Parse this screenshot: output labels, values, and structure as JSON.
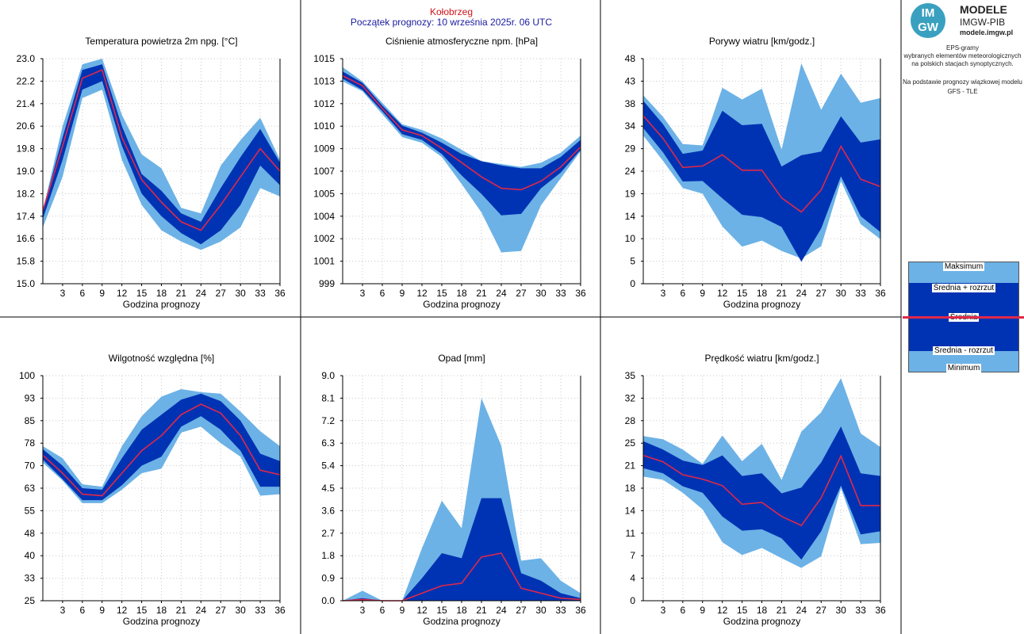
{
  "header": {
    "city": "Kołobrzeg",
    "start": "Początek prognozy: 10 września 2025r. 06 UTC"
  },
  "logo": {
    "mark": "IM GW",
    "title": "MODELE",
    "subtitle": "IMGW-PIB",
    "url": "modele.imgw.pl"
  },
  "info": {
    "line1": "EPS-gramy",
    "line2": "wybranych elementów meteorologicznych",
    "line3": "na polskich stacjach synoptycznych.",
    "line4": "Na podstawie prognozy wiązkowej modelu",
    "line5": "GFS - TLE"
  },
  "legend": {
    "max": "Maksimum",
    "upper": "Średnia + rozrzut",
    "mean": "Średnia",
    "lower": "Średnia - rozrzut",
    "min": "Minimum"
  },
  "colors": {
    "outer_band": "#6cb2e6",
    "inner_band": "#0033b3",
    "mean_line": "#e0284a",
    "grid": "#c8c8c8",
    "title_city": "#d0141b",
    "title_start": "#1a1aa0"
  },
  "chart_data": [
    {
      "type": "area",
      "title": "Temperatura powietrza 2m npg. [°C]",
      "xlabel": "Godzina prognozy",
      "x": [
        0,
        3,
        6,
        9,
        12,
        15,
        18,
        21,
        24,
        27,
        30,
        33,
        36
      ],
      "xticks": [
        "3",
        "6",
        "9",
        "12",
        "15",
        "18",
        "21",
        "24",
        "27",
        "30",
        "33",
        "36"
      ],
      "yticks": [
        "15.0",
        "15.8",
        "16.6",
        "17.4",
        "18.2",
        "19.0",
        "19.8",
        "20.6",
        "21.4",
        "22.2",
        "23.0"
      ],
      "ylim": [
        15.0,
        23.0
      ],
      "series": [
        {
          "name": "Maksimum",
          "values": [
            17.6,
            20.6,
            22.8,
            23.0,
            21.0,
            19.6,
            19.1,
            17.7,
            17.5,
            19.2,
            20.1,
            20.9,
            19.4
          ]
        },
        {
          "name": "Średnia + rozrzut",
          "values": [
            17.6,
            20.2,
            22.6,
            22.8,
            20.6,
            18.9,
            18.3,
            17.5,
            17.2,
            18.4,
            19.5,
            20.5,
            19.3
          ]
        },
        {
          "name": "Średnia",
          "values": [
            17.6,
            19.9,
            22.3,
            22.6,
            20.2,
            18.7,
            17.9,
            17.2,
            16.9,
            17.8,
            18.8,
            19.8,
            19.0
          ]
        },
        {
          "name": "Średnia - rozrzut",
          "values": [
            17.3,
            19.4,
            21.9,
            22.2,
            19.9,
            18.2,
            17.4,
            16.8,
            16.4,
            16.9,
            17.8,
            19.2,
            18.5
          ]
        },
        {
          "name": "Minimum",
          "values": [
            17.0,
            18.8,
            21.6,
            21.9,
            19.4,
            17.8,
            16.9,
            16.5,
            16.2,
            16.5,
            17.0,
            18.4,
            18.1
          ]
        }
      ]
    },
    {
      "type": "area",
      "title": "Ciśnienie atmosferyczne npm. [hPa]",
      "xlabel": "Godzina prognozy",
      "x": [
        0,
        3,
        6,
        9,
        12,
        15,
        18,
        21,
        24,
        27,
        30,
        33,
        36
      ],
      "xticks": [
        "3",
        "6",
        "9",
        "12",
        "15",
        "18",
        "21",
        "24",
        "27",
        "30",
        "33",
        "36"
      ],
      "yticks": [
        "999",
        "1001",
        "1002",
        "1004",
        "1005",
        "1007",
        "1009",
        "1010",
        "1012",
        "1013",
        "1015"
      ],
      "ylim": [
        999.4,
        1015.2
      ],
      "series": [
        {
          "name": "Maksimum",
          "values": [
            1014.6,
            1013.6,
            1012.1,
            1010.6,
            1010.2,
            1009.6,
            1008.8,
            1008.0,
            1007.8,
            1007.6,
            1007.9,
            1008.6,
            1009.8
          ]
        },
        {
          "name": "Średnia + rozrzut",
          "values": [
            1014.3,
            1013.5,
            1011.9,
            1010.5,
            1010.0,
            1009.3,
            1008.5,
            1008.0,
            1007.7,
            1007.5,
            1007.5,
            1008.3,
            1009.5
          ]
        },
        {
          "name": "Średnia",
          "values": [
            1014.0,
            1013.3,
            1011.7,
            1010.2,
            1009.8,
            1008.9,
            1007.9,
            1006.9,
            1006.1,
            1006.0,
            1006.6,
            1007.6,
            1009.0
          ]
        },
        {
          "name": "Średnia - rozrzut",
          "values": [
            1013.8,
            1013.0,
            1011.5,
            1009.9,
            1009.5,
            1008.5,
            1007.0,
            1005.7,
            1004.2,
            1004.3,
            1006.1,
            1007.2,
            1008.8
          ]
        },
        {
          "name": "Minimum",
          "values": [
            1013.6,
            1012.9,
            1011.3,
            1009.7,
            1009.3,
            1008.3,
            1006.4,
            1004.4,
            1001.6,
            1001.7,
            1004.9,
            1006.8,
            1008.7
          ]
        }
      ]
    },
    {
      "type": "area",
      "title": "Porywy wiatru [km/godz.]",
      "xlabel": "Godzina prognozy",
      "x": [
        0,
        3,
        6,
        9,
        12,
        15,
        18,
        21,
        24,
        27,
        30,
        33,
        36
      ],
      "xticks": [
        "3",
        "6",
        "9",
        "12",
        "15",
        "18",
        "21",
        "24",
        "27",
        "30",
        "33",
        "36"
      ],
      "yticks": [
        "0",
        "5",
        "10",
        "14",
        "19",
        "24",
        "29",
        "34",
        "38",
        "43",
        "48"
      ],
      "ylim": [
        0,
        48
      ],
      "series": [
        {
          "name": "Maksimum",
          "values": [
            40.2,
            35.6,
            29.8,
            29.5,
            41.8,
            39.3,
            41.6,
            28.6,
            47.0,
            37.1,
            44.8,
            38.6,
            39.6
          ]
        },
        {
          "name": "Średnia + rozrzut",
          "values": [
            39.0,
            34.0,
            27.7,
            28.4,
            36.9,
            33.8,
            34.1,
            25.0,
            27.4,
            28.2,
            35.7,
            30.1,
            30.8
          ]
        },
        {
          "name": "Średnia",
          "values": [
            35.8,
            31.0,
            24.8,
            25.1,
            27.5,
            24.2,
            24.2,
            18.3,
            15.3,
            20.0,
            29.3,
            22.3,
            20.7
          ]
        },
        {
          "name": "Średnia - rozrzut",
          "values": [
            33.2,
            28.0,
            21.8,
            21.9,
            18.2,
            14.7,
            14.2,
            12.1,
            4.7,
            11.8,
            22.9,
            14.4,
            11.0
          ]
        },
        {
          "name": "Minimum",
          "values": [
            31.6,
            26.2,
            20.4,
            19.2,
            12.2,
            7.9,
            9.2,
            7.0,
            5.4,
            8.0,
            21.9,
            12.7,
            9.5
          ]
        }
      ]
    },
    {
      "type": "area",
      "title": "Wilgotność względna [%]",
      "xlabel": "Godzina prognozy",
      "x": [
        0,
        3,
        6,
        9,
        12,
        15,
        18,
        21,
        24,
        27,
        30,
        33,
        36
      ],
      "xticks": [
        "3",
        "6",
        "9",
        "12",
        "15",
        "18",
        "21",
        "24",
        "27",
        "30",
        "33",
        "36"
      ],
      "yticks": [
        "25",
        "33",
        "40",
        "48",
        "55",
        "63",
        "70",
        "78",
        "85",
        "93",
        "100"
      ],
      "ylim": [
        25,
        100
      ],
      "series": [
        {
          "name": "Maksimum",
          "values": [
            76.5,
            72.5,
            63.8,
            63.0,
            76.5,
            86.5,
            93.0,
            95.5,
            94.5,
            94.0,
            88.0,
            81.5,
            76.5
          ]
        },
        {
          "name": "Średnia + rozrzut",
          "values": [
            75.5,
            70.0,
            62.5,
            62.0,
            72.5,
            82.0,
            87.0,
            92.0,
            94.0,
            91.5,
            85.0,
            74.0,
            71.5
          ]
        },
        {
          "name": "Średnia",
          "values": [
            73.5,
            67.5,
            60.5,
            60.0,
            67.5,
            75.0,
            80.0,
            87.0,
            90.5,
            87.5,
            80.0,
            68.5,
            67.0
          ]
        },
        {
          "name": "Średnia - rozrzut",
          "values": [
            72.0,
            65.5,
            58.5,
            58.5,
            63.5,
            70.0,
            73.0,
            83.0,
            86.5,
            82.0,
            75.0,
            63.0,
            63.0
          ]
        },
        {
          "name": "Minimum",
          "values": [
            71.0,
            65.0,
            57.5,
            57.5,
            62.0,
            67.5,
            69.0,
            81.0,
            83.0,
            77.5,
            73.0,
            60.0,
            60.5
          ]
        }
      ]
    },
    {
      "type": "area",
      "title": "Opad [mm]",
      "xlabel": "Godzina prognozy",
      "x": [
        0,
        3,
        6,
        9,
        12,
        15,
        18,
        21,
        24,
        27,
        30,
        33,
        36
      ],
      "xticks": [
        "3",
        "6",
        "9",
        "12",
        "15",
        "18",
        "21",
        "24",
        "27",
        "30",
        "33",
        "36"
      ],
      "yticks": [
        "0.0",
        "0.9",
        "1.8",
        "2.7",
        "3.6",
        "4.5",
        "5.4",
        "6.3",
        "7.2",
        "8.1",
        "9.0"
      ],
      "ylim": [
        0,
        9.0
      ],
      "series": [
        {
          "name": "Maksimum",
          "values": [
            0.0,
            0.4,
            0.0,
            0.0,
            2.1,
            4.0,
            2.9,
            8.1,
            6.2,
            1.6,
            1.7,
            0.8,
            0.3
          ]
        },
        {
          "name": "Średnia + rozrzut",
          "values": [
            0.0,
            0.1,
            0.0,
            0.0,
            0.9,
            1.9,
            1.7,
            4.1,
            4.1,
            1.1,
            0.8,
            0.3,
            0.1
          ]
        },
        {
          "name": "Średnia",
          "values": [
            0.0,
            0.05,
            0.0,
            0.0,
            0.3,
            0.6,
            0.7,
            1.75,
            1.9,
            0.5,
            0.3,
            0.1,
            0.05
          ]
        },
        {
          "name": "Średnia - rozrzut",
          "values": [
            0.0,
            0.0,
            0.0,
            0.0,
            0.0,
            0.0,
            0.0,
            0.0,
            0.0,
            0.0,
            0.0,
            0.0,
            0.0
          ]
        },
        {
          "name": "Minimum",
          "values": [
            0.0,
            0.0,
            0.0,
            0.0,
            0.0,
            0.0,
            0.0,
            0.0,
            0.0,
            0.0,
            0.0,
            0.0,
            0.0
          ]
        }
      ]
    },
    {
      "type": "area",
      "title": "Prędkość wiatru [km/godz.]",
      "xlabel": "Godzina prognozy",
      "x": [
        0,
        3,
        6,
        9,
        12,
        15,
        18,
        21,
        24,
        27,
        30,
        33,
        36
      ],
      "xticks": [
        "3",
        "6",
        "9",
        "12",
        "15",
        "18",
        "21",
        "24",
        "27",
        "30",
        "33",
        "36"
      ],
      "yticks": [
        "0",
        "4",
        "7",
        "11",
        "14",
        "18",
        "21",
        "25",
        "28",
        "32",
        "35"
      ],
      "ylim": [
        0,
        35
      ],
      "series": [
        {
          "name": "Maksimum",
          "values": [
            25.6,
            25.1,
            23.5,
            21.3,
            25.7,
            21.7,
            24.4,
            18.8,
            26.3,
            29.3,
            34.6,
            26.0,
            23.9
          ]
        },
        {
          "name": "Średnia + rozrzut",
          "values": [
            24.8,
            23.5,
            21.8,
            21.1,
            22.6,
            19.4,
            19.8,
            16.7,
            17.6,
            21.5,
            27.1,
            19.8,
            19.4
          ]
        },
        {
          "name": "Średnia",
          "values": [
            22.6,
            21.6,
            19.6,
            18.9,
            17.9,
            15.0,
            15.3,
            13.1,
            11.7,
            16.0,
            22.5,
            14.8,
            14.8
          ]
        },
        {
          "name": "Średnia - rozrzut",
          "values": [
            20.6,
            19.8,
            17.8,
            16.8,
            13.1,
            10.9,
            11.1,
            9.7,
            6.4,
            10.8,
            17.9,
            10.3,
            10.8
          ]
        },
        {
          "name": "Minimum",
          "values": [
            19.3,
            18.8,
            16.8,
            14.2,
            9.1,
            7.1,
            8.2,
            6.6,
            5.1,
            6.9,
            17.5,
            8.8,
            9.0
          ]
        }
      ]
    }
  ]
}
